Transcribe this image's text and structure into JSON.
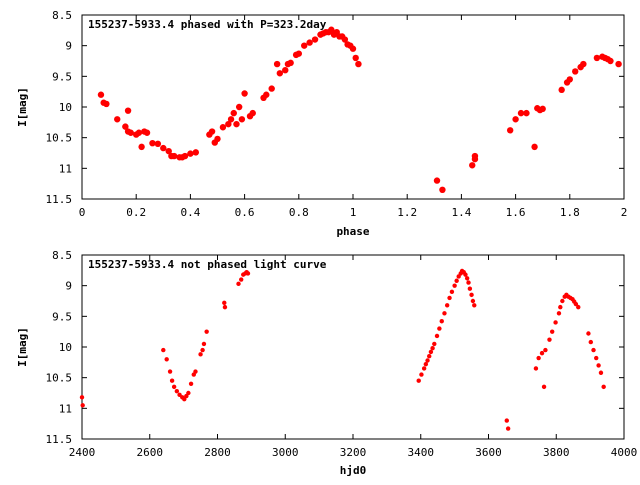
{
  "chart_data": [
    {
      "type": "scatter",
      "title": "155237-5933.4 phased with P=323.2day",
      "xlabel": "phase",
      "ylabel": "I[mag]",
      "xlim": [
        0,
        2
      ],
      "ylim": [
        8.5,
        11.5
      ],
      "y_inverted": true,
      "x_ticks": [
        "0",
        "0.2",
        "0.4",
        "0.6",
        "0.8",
        "1",
        "1.2",
        "1.4",
        "1.6",
        "1.8",
        "2"
      ],
      "y_ticks": [
        "8.5",
        "9",
        "9.5",
        "10",
        "10.5",
        "11",
        "11.5"
      ],
      "x_tick_values": [
        0,
        0.2,
        0.4,
        0.6,
        0.8,
        1.0,
        1.2,
        1.4,
        1.6,
        1.8,
        2.0
      ],
      "y_tick_values": [
        8.5,
        9,
        9.5,
        10,
        10.5,
        11,
        11.5
      ],
      "marker_color": "#ff0000",
      "series": [
        {
          "x": [
            0.07,
            0.08,
            0.09,
            0.13,
            0.16,
            0.17,
            0.17,
            0.18,
            0.2,
            0.21,
            0.22,
            0.23,
            0.24,
            0.26,
            0.28,
            0.3,
            0.32,
            0.33,
            0.34,
            0.36,
            0.37,
            0.38,
            0.4,
            0.42,
            0.47,
            0.48,
            0.49,
            0.5,
            0.52,
            0.54,
            0.55,
            0.56,
            0.57,
            0.58,
            0.59,
            0.6,
            0.62,
            0.63,
            0.67,
            0.68,
            0.7,
            0.72,
            0.73,
            0.75,
            0.76,
            0.77,
            0.79,
            0.8,
            0.82,
            0.84,
            0.86,
            0.88,
            0.89,
            0.9,
            0.91,
            0.92,
            0.93,
            0.94,
            0.95,
            0.96,
            0.97,
            0.98,
            0.99,
            1.0,
            1.01,
            1.02,
            1.31,
            1.33,
            1.44,
            1.45,
            1.45,
            1.58,
            1.6,
            1.62,
            1.64,
            1.67,
            1.68,
            1.69,
            1.7,
            1.77,
            1.79,
            1.8,
            1.82,
            1.84,
            1.85,
            1.9,
            1.92,
            1.93,
            1.94,
            1.95,
            1.98
          ],
          "y": [
            9.8,
            9.93,
            9.95,
            10.2,
            10.32,
            10.4,
            10.06,
            10.42,
            10.45,
            10.42,
            10.65,
            10.4,
            10.42,
            10.59,
            10.6,
            10.67,
            10.72,
            10.8,
            10.8,
            10.82,
            10.82,
            10.8,
            10.76,
            10.74,
            10.45,
            10.4,
            10.58,
            10.52,
            10.33,
            10.28,
            10.2,
            10.1,
            10.28,
            10.0,
            10.2,
            9.78,
            10.15,
            10.1,
            9.85,
            9.8,
            9.7,
            9.3,
            9.45,
            9.4,
            9.3,
            9.28,
            9.15,
            9.13,
            9.0,
            8.95,
            8.9,
            8.82,
            8.8,
            8.78,
            8.78,
            8.74,
            8.82,
            8.78,
            8.85,
            8.85,
            8.9,
            8.98,
            9.0,
            9.05,
            9.2,
            9.3,
            11.2,
            11.35,
            10.95,
            10.85,
            10.8,
            10.38,
            10.2,
            10.1,
            10.1,
            10.65,
            10.02,
            10.05,
            10.03,
            9.72,
            9.6,
            9.55,
            9.42,
            9.35,
            9.3,
            9.2,
            9.18,
            9.2,
            9.22,
            9.25,
            9.3
          ]
        }
      ]
    },
    {
      "type": "scatter",
      "title": "155237-5933.4 not phased light curve",
      "xlabel": "hjd0",
      "ylabel": "I[mag]",
      "xlim": [
        2400,
        4000
      ],
      "ylim": [
        8.5,
        11.5
      ],
      "y_inverted": true,
      "x_ticks": [
        "2400",
        "2600",
        "2800",
        "3000",
        "3200",
        "3400",
        "3600",
        "3800",
        "4000"
      ],
      "y_ticks": [
        "8.5",
        "9",
        "9.5",
        "10",
        "10.5",
        "11",
        "11.5"
      ],
      "x_tick_values": [
        2400,
        2600,
        2800,
        3000,
        3200,
        3400,
        3600,
        3800,
        4000
      ],
      "y_tick_values": [
        8.5,
        9,
        9.5,
        10,
        10.5,
        11,
        11.5
      ],
      "marker_color": "#ff0000",
      "series": [
        {
          "x": [
            2400,
            2402,
            2640,
            2650,
            2660,
            2666,
            2672,
            2680,
            2688,
            2696,
            2702,
            2708,
            2714,
            2722,
            2730,
            2735,
            2750,
            2756,
            2760,
            2768,
            2820,
            2822,
            2862,
            2870,
            2876,
            2882,
            2886,
            2890,
            3394,
            3402,
            3410,
            3415,
            3420,
            3425,
            3430,
            3435,
            3440,
            3448,
            3455,
            3462,
            3470,
            3478,
            3485,
            3492,
            3500,
            3506,
            3512,
            3518,
            3522,
            3527,
            3532,
            3537,
            3541,
            3545,
            3550,
            3554,
            3558,
            3654,
            3658,
            3740,
            3748,
            3758,
            3764,
            3768,
            3780,
            3788,
            3798,
            3808,
            3812,
            3818,
            3825,
            3830,
            3836,
            3842,
            3848,
            3853,
            3858,
            3865,
            3895,
            3902,
            3910,
            3918,
            3925,
            3932,
            3940
          ],
          "y": [
            10.82,
            10.95,
            10.05,
            10.2,
            10.4,
            10.55,
            10.65,
            10.72,
            10.78,
            10.82,
            10.85,
            10.8,
            10.75,
            10.6,
            10.45,
            10.4,
            10.12,
            10.05,
            9.95,
            9.75,
            9.28,
            9.35,
            8.97,
            8.9,
            8.82,
            8.8,
            8.78,
            8.8,
            10.55,
            10.45,
            10.35,
            10.28,
            10.22,
            10.15,
            10.08,
            10.02,
            9.95,
            9.82,
            9.7,
            9.58,
            9.45,
            9.32,
            9.2,
            9.1,
            9.0,
            8.92,
            8.85,
            8.8,
            8.76,
            8.78,
            8.82,
            8.88,
            8.95,
            9.05,
            9.15,
            9.25,
            9.32,
            11.2,
            11.33,
            10.35,
            10.18,
            10.1,
            10.65,
            10.05,
            9.88,
            9.75,
            9.6,
            9.45,
            9.35,
            9.25,
            9.18,
            9.15,
            9.18,
            9.2,
            9.22,
            9.26,
            9.3,
            9.35,
            9.78,
            9.92,
            10.05,
            10.18,
            10.3,
            10.42,
            10.65
          ]
        }
      ]
    }
  ]
}
